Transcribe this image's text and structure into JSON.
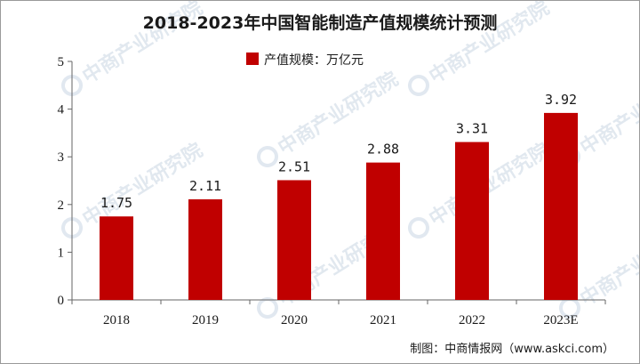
{
  "chart_data": {
    "type": "bar",
    "title": "2018-2023年中国智能制造产值规模统计预测",
    "categories": [
      "2018",
      "2019",
      "2020",
      "2021",
      "2022",
      "2023E"
    ],
    "series": [
      {
        "name": "产值规模：万亿元",
        "values": [
          1.75,
          2.11,
          2.51,
          2.88,
          3.31,
          3.92
        ]
      }
    ],
    "data_labels": [
      "1.75",
      "2.11",
      "2.51",
      "2.88",
      "3.31",
      "3.92"
    ],
    "y_ticks": [
      "0",
      "1",
      "2",
      "3",
      "4",
      "5"
    ],
    "ylim": [
      0,
      5
    ],
    "xlabel": "",
    "ylabel": "",
    "grid": false,
    "legend_position": "top-center",
    "bar_color": "#c00000"
  },
  "source": "制图：中商情报网（www.askci.com）",
  "watermark": "中商产业研究院"
}
